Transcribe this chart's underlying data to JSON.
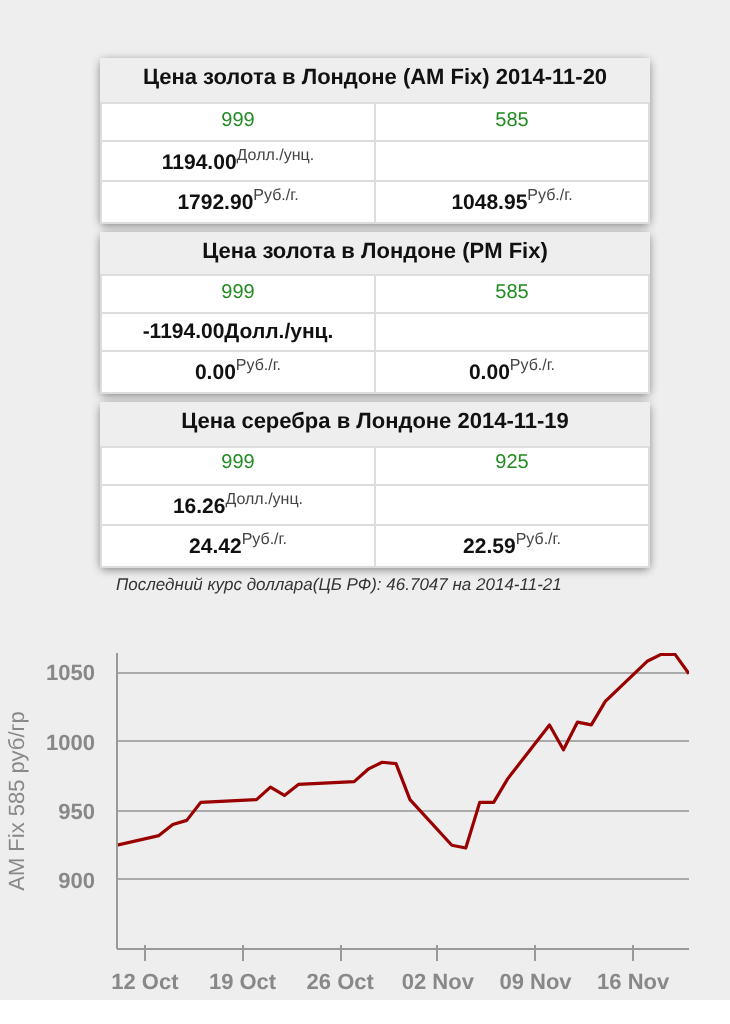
{
  "chart_data": [
    {
      "type": "other",
      "title": "Цена золота в Лондоне (AM Fix) 2014-11-20",
      "annotations": [
        "999",
        "585",
        "1194.00$^{Долл./унц.}$",
        null,
        "1792.90$^{Руб./г.}$",
        "1048.95$^{Руб./г.}$"
      ]
    },
    {
      "type": "other",
      "title": "Цена золота в Лондоне (PM Fix)",
      "annotations": [
        "999",
        "585",
        "-1194.00Долл./унц.",
        null,
        "0.00$^{Руб./г.}$",
        "0.00$^{Руб./г.}$"
      ]
    },
    {
      "type": "other",
      "title": "Цена серебра в Лондоне 2014-11-19",
      "annotations": [
        "999",
        "925",
        "16.26$^{Долл./унц.}$",
        null,
        "24.42$^{Руб./г.}$",
        "22.59$^{Руб./г.}$"
      ]
    },
    {
      "type": "other",
      "annotations": [
        "Последний курс доллара(ЦБ РФ): 46.7047 на 2014-11-21"
      ]
    },
    {
      "type": "line",
      "ylabel": "AM Fix 585 руб/гр",
      "x": [
        "2014-10-10",
        "2014-10-13",
        "2014-10-14",
        "2014-10-15",
        "2014-10-16",
        "2014-10-20",
        "2014-10-21",
        "2014-10-22",
        "2014-10-23",
        "2014-10-27",
        "2014-10-28",
        "2014-10-29",
        "2014-10-30",
        "2014-10-31",
        "2014-11-03",
        "2014-11-04",
        "2014-11-05",
        "2014-11-06",
        "2014-11-07",
        "2014-11-10",
        "2014-11-11",
        "2014-11-12",
        "2014-11-13",
        "2014-11-14",
        "2014-11-17",
        "2014-11-18",
        "2014-11-19",
        "2014-11-20"
      ],
      "series": [
        {
          "color": "#990000",
          "values": [
            925,
            932,
            940,
            943,
            956,
            958,
            967,
            961,
            969,
            971,
            980,
            985,
            984,
            958,
            925,
            923,
            956,
            956,
            973,
            1012,
            994,
            1014,
            1012,
            1029,
            1058,
            1063,
            1063,
            1049
          ]
        }
      ],
      "xlim": [
        "2014-10-10",
        "2014-11-20"
      ],
      "xticks": [
        {
          "value": "2014-10-12",
          "label": "12 Oct"
        },
        {
          "value": "2014-10-19",
          "label": "19 Oct"
        },
        {
          "value": "2014-10-26",
          "label": "26 Oct"
        },
        {
          "value": "2014-11-02",
          "label": "02 Nov"
        },
        {
          "value": "2014-11-09",
          "label": "09 Nov"
        },
        {
          "value": "2014-11-16",
          "label": "16 Nov"
        }
      ],
      "ylim": [
        850,
        1064
      ],
      "yticks": [
        900,
        950,
        1000,
        1050
      ],
      "grid": "y",
      "marker": "none",
      "line_style": "solid"
    }
  ]
}
